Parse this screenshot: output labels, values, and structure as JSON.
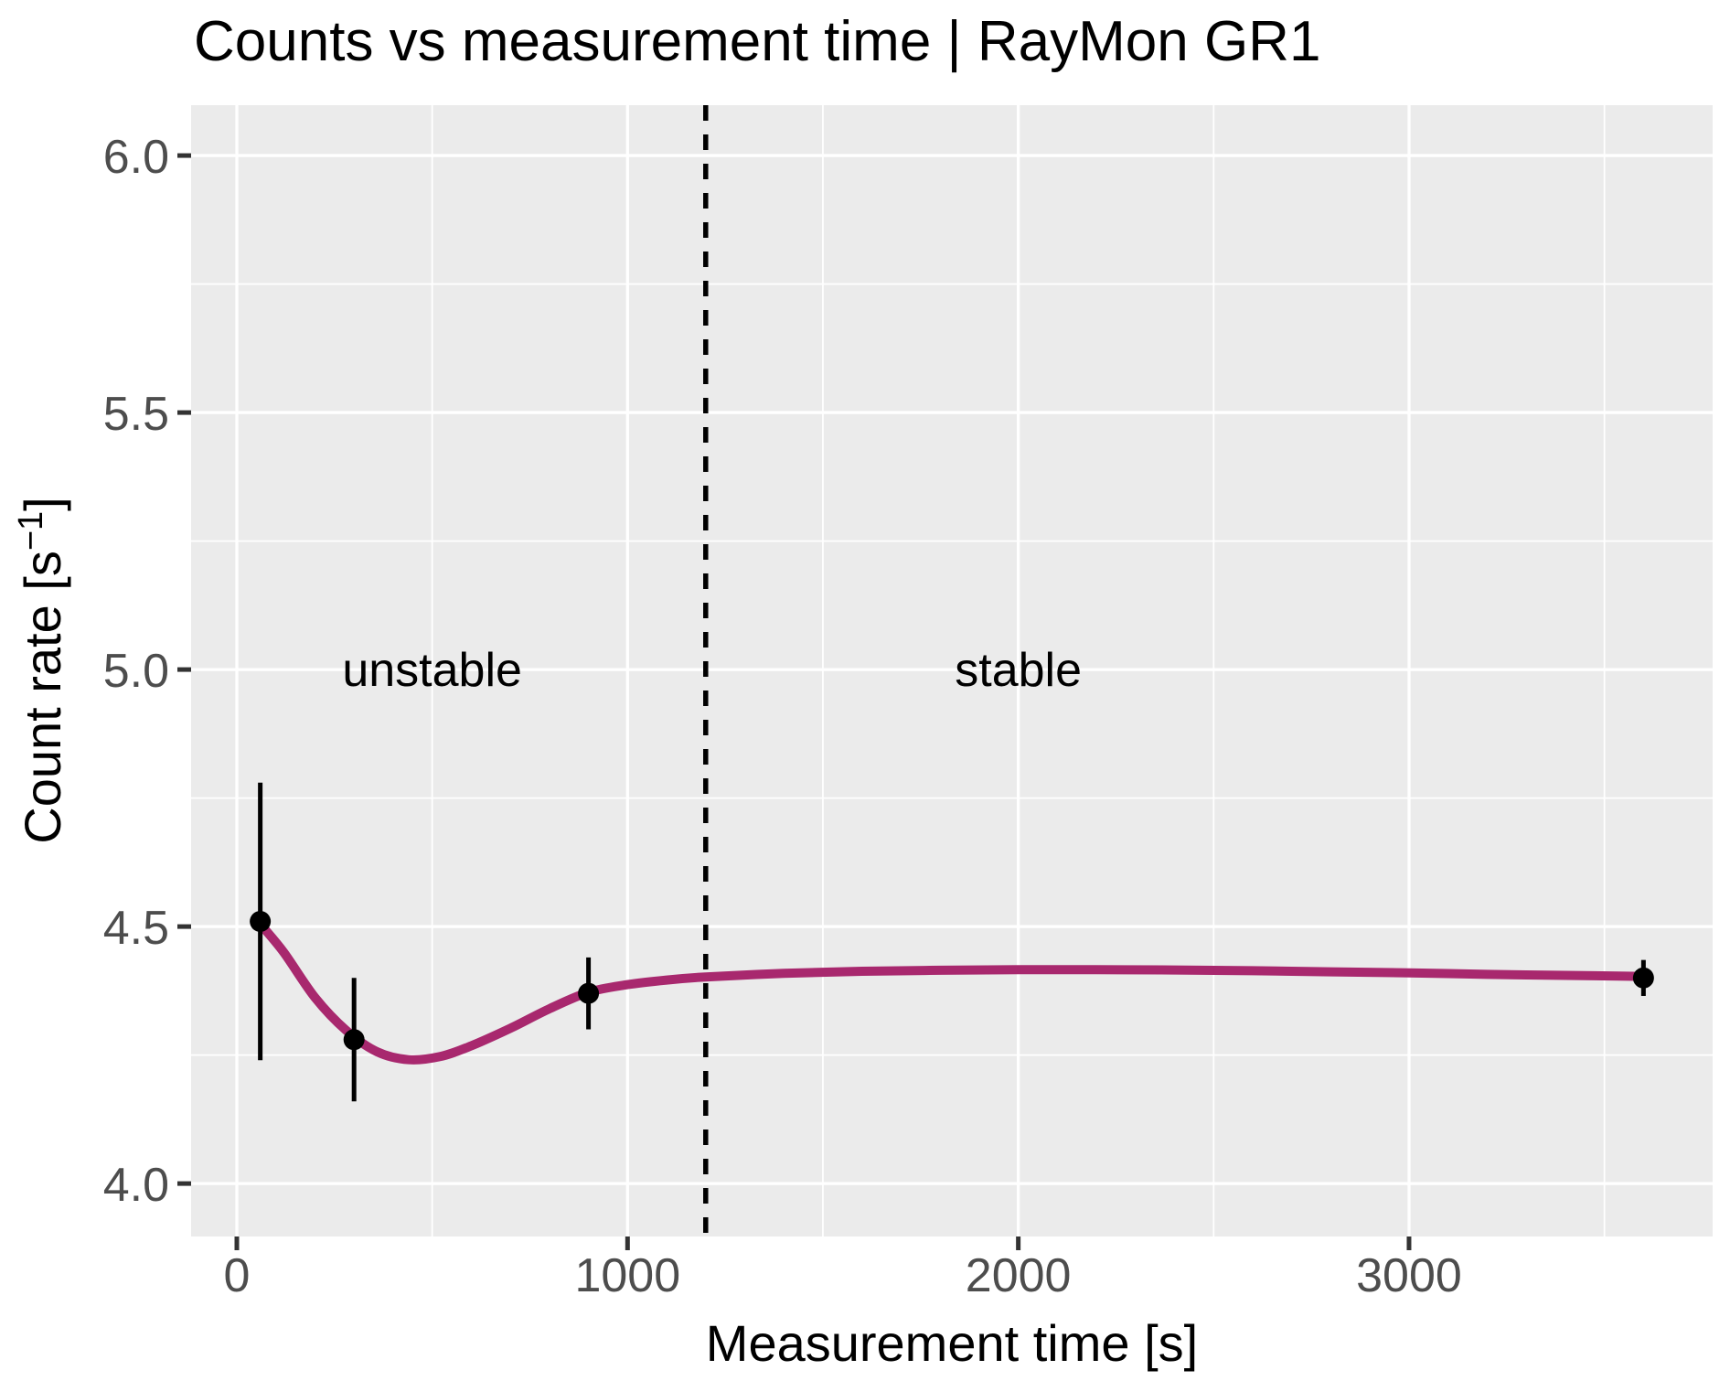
{
  "chart_data": {
    "type": "line",
    "title": "Counts vs measurement time | RayMon GR1",
    "xlabel": "Measurement time [s]",
    "ylabel": "Count rate [s⁻¹]",
    "ylabel_parts": {
      "base": "Count rate [s",
      "sup": "−1",
      "close": "]"
    },
    "x_domain": [
      -117,
      3777
    ],
    "y_domain": [
      3.897,
      6.098
    ],
    "x_ticks": [
      0,
      1000,
      2000,
      3000
    ],
    "x_tick_labels": [
      "0",
      "1000",
      "2000",
      "3000"
    ],
    "x_minor_ticks": [
      500,
      1500,
      2500,
      3500
    ],
    "y_ticks": [
      4.0,
      4.5,
      5.0,
      5.5,
      6.0
    ],
    "y_tick_labels": [
      "4.0",
      "4.5",
      "5.0",
      "5.5",
      "6.0"
    ],
    "y_minor_ticks": [
      4.25,
      4.75,
      5.25,
      5.75
    ],
    "grid": true,
    "legend": false,
    "points": [
      {
        "t": 60,
        "rate": 4.51,
        "err": 0.27
      },
      {
        "t": 300,
        "rate": 4.28,
        "err": 0.12
      },
      {
        "t": 900,
        "rate": 4.37,
        "err": 0.07
      },
      {
        "t": 3600,
        "rate": 4.4,
        "err": 0.035
      }
    ],
    "smooth_curve": [
      [
        60,
        4.505
      ],
      [
        120,
        4.45
      ],
      [
        200,
        4.362
      ],
      [
        280,
        4.298
      ],
      [
        360,
        4.256
      ],
      [
        440,
        4.241
      ],
      [
        520,
        4.247
      ],
      [
        600,
        4.268
      ],
      [
        700,
        4.302
      ],
      [
        800,
        4.34
      ],
      [
        900,
        4.372
      ],
      [
        1000,
        4.387
      ],
      [
        1100,
        4.396
      ],
      [
        1200,
        4.402
      ],
      [
        1400,
        4.409
      ],
      [
        1600,
        4.413
      ],
      [
        1800,
        4.415
      ],
      [
        2000,
        4.416
      ],
      [
        2200,
        4.416
      ],
      [
        2400,
        4.4155
      ],
      [
        2600,
        4.414
      ],
      [
        2800,
        4.412
      ],
      [
        3000,
        4.41
      ],
      [
        3200,
        4.407
      ],
      [
        3400,
        4.405
      ],
      [
        3600,
        4.403
      ]
    ],
    "vline": {
      "t": 1200,
      "style": "dashed"
    },
    "annotations": [
      {
        "id": "unstable",
        "text": "unstable",
        "t": 500,
        "y": 5.0
      },
      {
        "id": "stable",
        "text": "stable",
        "t": 2000,
        "y": 5.0
      }
    ],
    "colors": {
      "curve": "#A8286E",
      "points": "#000000",
      "error_bars": "#000000",
      "vline": "#000000",
      "panel_bg": "#EBEBEB",
      "grid": "#FFFFFF",
      "tick_label": "#4D4D4D",
      "tick_mark": "#333333",
      "annotation_text": "#000000"
    }
  }
}
